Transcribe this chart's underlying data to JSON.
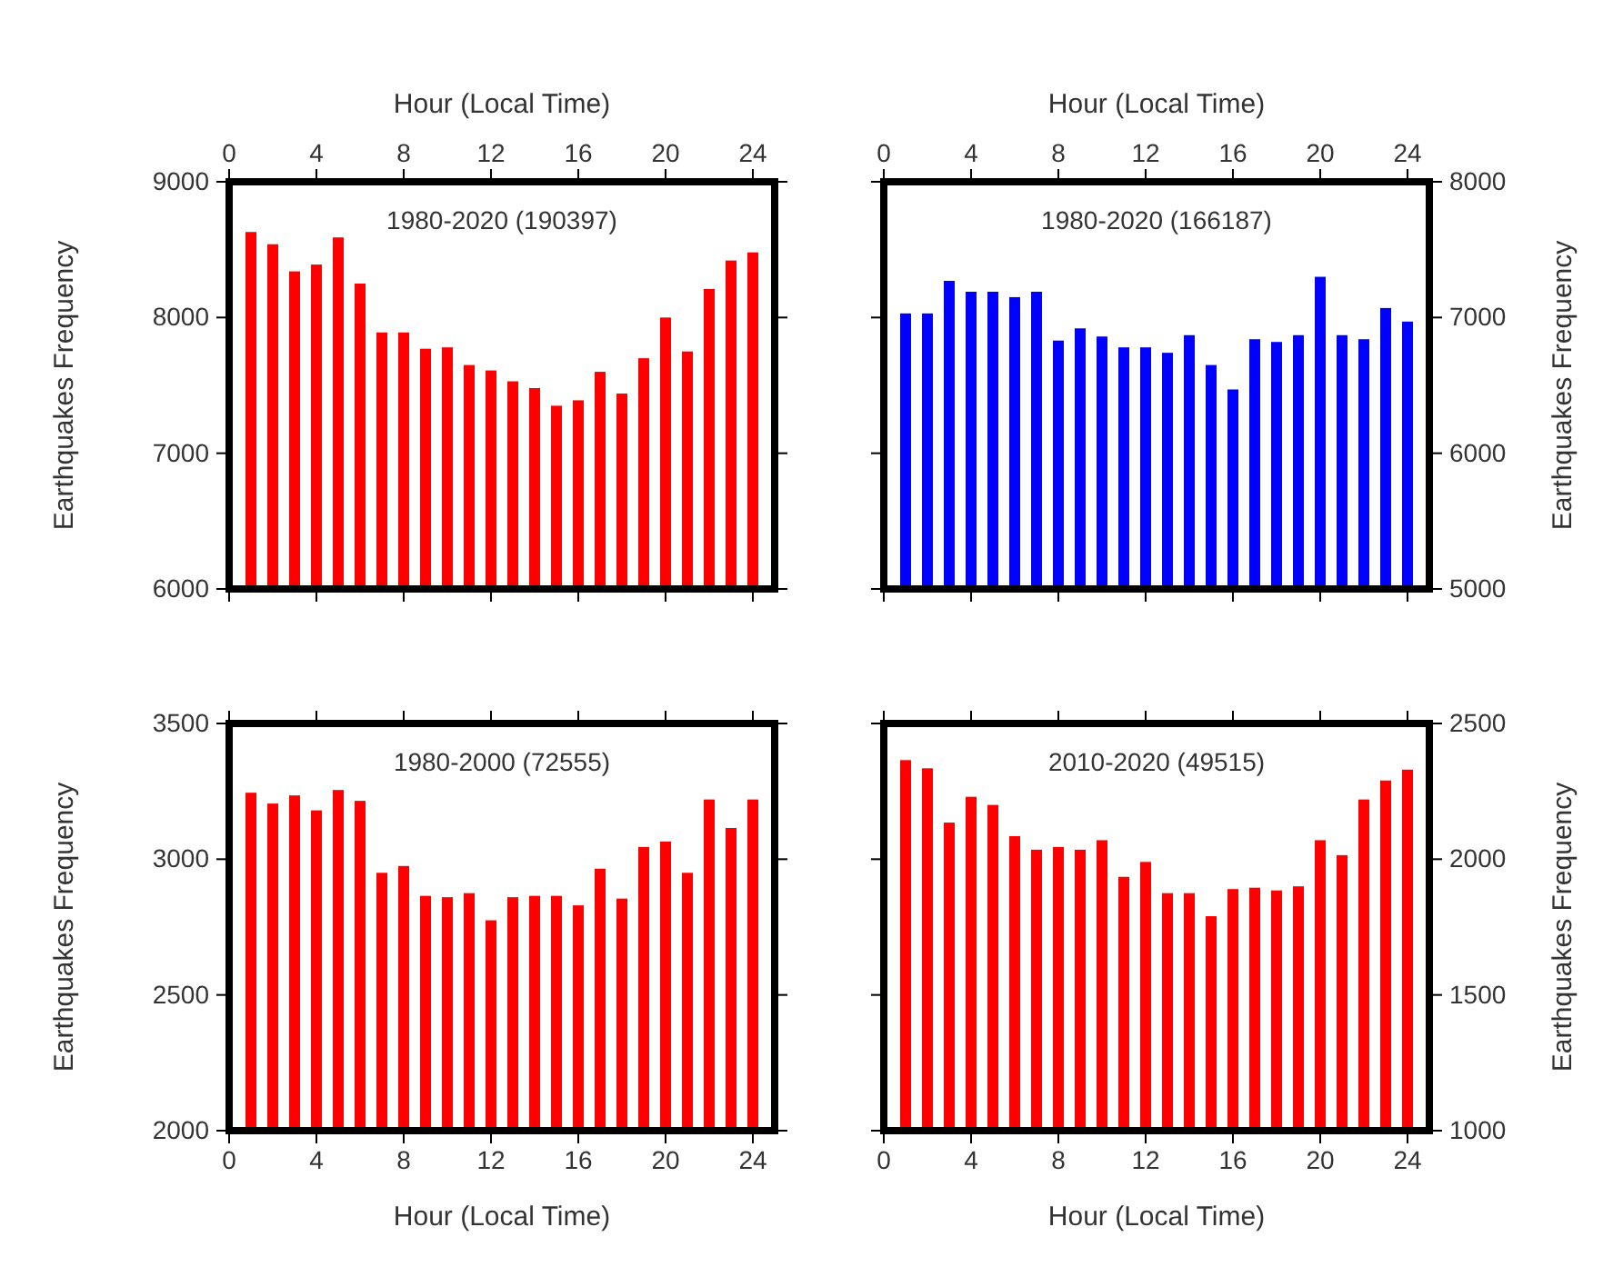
{
  "chart_data": [
    {
      "type": "bar",
      "title": "1980-2020 (190397)",
      "xlabel": "Hour (Local Time)",
      "ylabel": "Earthquakes Frequency",
      "x": [
        1,
        2,
        3,
        4,
        5,
        6,
        7,
        8,
        9,
        10,
        11,
        12,
        13,
        14,
        15,
        16,
        17,
        18,
        19,
        20,
        21,
        22,
        23,
        24
      ],
      "xlim": [
        0,
        25
      ],
      "xticks": [
        0,
        4,
        8,
        12,
        16,
        20,
        24
      ],
      "ylim": [
        6000,
        9000
      ],
      "yticks": [
        6000,
        7000,
        8000,
        9000
      ],
      "series": [
        {
          "color": "#ff0000",
          "values": [
            8630,
            8540,
            8340,
            8390,
            8590,
            8250,
            7890,
            7890,
            7770,
            7780,
            7650,
            7610,
            7530,
            7480,
            7350,
            7390,
            7600,
            7440,
            7700,
            8000,
            7750,
            8210,
            8420,
            8480
          ]
        }
      ]
    },
    {
      "type": "bar",
      "title": "1980-2020 (166187)",
      "xlabel": "Hour (Local Time)",
      "y2label": "Earthquakes Frequency",
      "x": [
        1,
        2,
        3,
        4,
        5,
        6,
        7,
        8,
        9,
        10,
        11,
        12,
        13,
        14,
        15,
        16,
        17,
        18,
        19,
        20,
        21,
        22,
        23,
        24
      ],
      "xlim": [
        0,
        25
      ],
      "xticks": [
        0,
        4,
        8,
        12,
        16,
        20,
        24
      ],
      "y2lim": [
        5000,
        8000
      ],
      "y2ticks": [
        5000,
        6000,
        7000,
        8000
      ],
      "series": [
        {
          "color": "#0000ff",
          "axis": "y2",
          "values": [
            7030,
            7030,
            7270,
            7190,
            7190,
            7150,
            7190,
            6830,
            6920,
            6860,
            6780,
            6780,
            6740,
            6870,
            6650,
            6470,
            6840,
            6820,
            6870,
            7300,
            6870,
            6840,
            7070,
            6970
          ]
        }
      ]
    },
    {
      "type": "bar",
      "title": "1980-2000 (72555)",
      "xlabel": "Hour (Local Time)",
      "ylabel": "Earthquakes Frequency",
      "x": [
        1,
        2,
        3,
        4,
        5,
        6,
        7,
        8,
        9,
        10,
        11,
        12,
        13,
        14,
        15,
        16,
        17,
        18,
        19,
        20,
        21,
        22,
        23,
        24
      ],
      "xlim": [
        0,
        25
      ],
      "xticks": [
        0,
        4,
        8,
        12,
        16,
        20,
        24
      ],
      "ylim": [
        2000,
        3500
      ],
      "yticks": [
        2000,
        2500,
        3000,
        3500
      ],
      "series": [
        {
          "color": "#ff0000",
          "values": [
            3245,
            3205,
            3235,
            3180,
            3255,
            3215,
            2950,
            2975,
            2865,
            2860,
            2875,
            2775,
            2860,
            2865,
            2865,
            2830,
            2965,
            2855,
            3045,
            3065,
            2950,
            3220,
            3115,
            3220
          ]
        }
      ]
    },
    {
      "type": "bar",
      "title": "2010-2020 (49515)",
      "xlabel": "Hour (Local Time)",
      "y2label": "Earthquakes Frequency",
      "x": [
        1,
        2,
        3,
        4,
        5,
        6,
        7,
        8,
        9,
        10,
        11,
        12,
        13,
        14,
        15,
        16,
        17,
        18,
        19,
        20,
        21,
        22,
        23,
        24
      ],
      "xlim": [
        0,
        25
      ],
      "xticks": [
        0,
        4,
        8,
        12,
        16,
        20,
        24
      ],
      "y2lim": [
        1000,
        2500
      ],
      "y2ticks": [
        1000,
        1500,
        2000,
        2500
      ],
      "series": [
        {
          "color": "#ff0000",
          "axis": "y2",
          "values": [
            2365,
            2335,
            2135,
            2230,
            2200,
            2085,
            2035,
            2045,
            2035,
            2070,
            1935,
            1990,
            1875,
            1875,
            1790,
            1890,
            1895,
            1885,
            1900,
            2070,
            2015,
            2220,
            2290,
            2330
          ]
        }
      ]
    }
  ]
}
